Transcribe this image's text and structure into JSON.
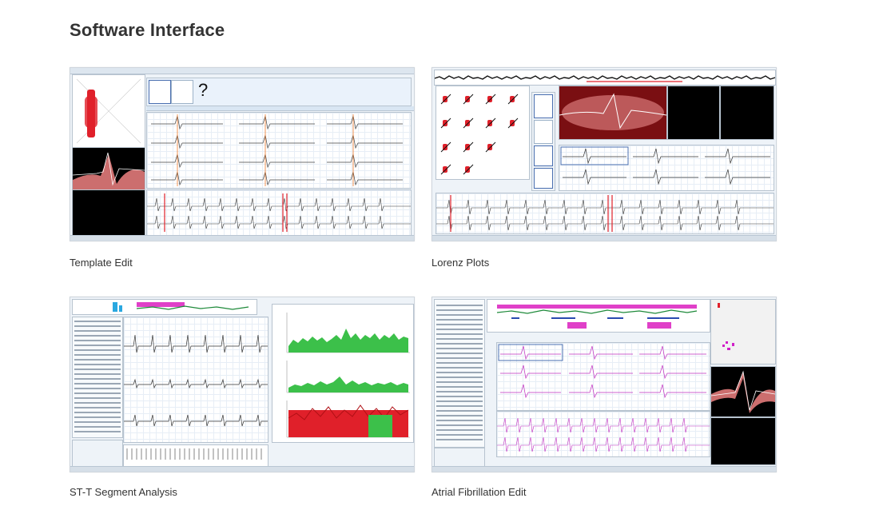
{
  "page": {
    "title": "Software Interface"
  },
  "cards": [
    {
      "caption": "Template Edit"
    },
    {
      "caption": "Lorenz Plots"
    },
    {
      "caption": "ST-T Segment Analysis"
    },
    {
      "caption": "Atrial Fibrillation Edit"
    }
  ],
  "icons": {
    "unknown_template": "?"
  }
}
